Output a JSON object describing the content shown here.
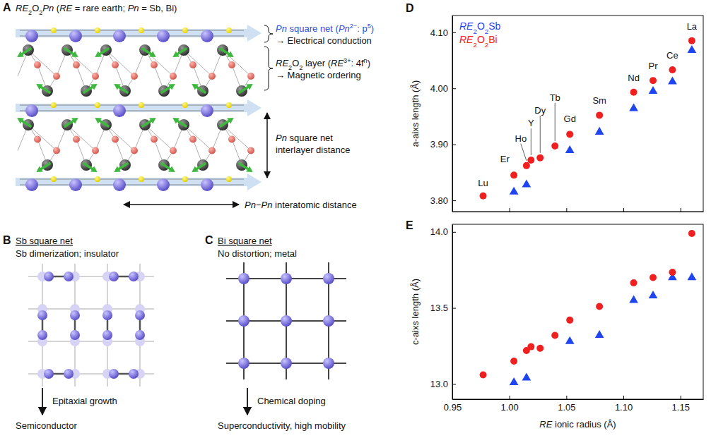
{
  "diagram": {
    "panel_letters": [
      "A",
      "B",
      "C",
      "D",
      "E"
    ],
    "A": {
      "title": "RE2O2Pn (RE = rare earth; Pn = Sb, Bi)",
      "net_label": "Pn square net (Pn2−: p5)",
      "net_role": "→ Electrical conduction",
      "layer_label": "RE2O2 layer (RE3+: 4fn)",
      "layer_role": "→ Magnetic ordering",
      "interlayer_label": [
        "Pn square net",
        "interlayer distance"
      ],
      "interatomic_label": "Pn−Pn interatomic distance"
    },
    "B": {
      "title": "Sb square net",
      "subtitle": "Sb dimerization; insulator",
      "arrow_label": "Epitaxial growth",
      "result": "Semiconductor"
    },
    "C": {
      "title": "Bi square net",
      "subtitle": "No distortion; metal",
      "arrow_label": "Chemical doping",
      "result": "Superconductivity, high mobility"
    }
  },
  "chart_data": [
    {
      "type": "scatter",
      "ylabel": "a-aixs length (Å)",
      "xlim": [
        0.95,
        1.17
      ],
      "ylim": [
        3.78,
        4.13
      ],
      "xticks": [
        0.95,
        1.0,
        1.05,
        1.1,
        1.15
      ],
      "yticks": [
        {
          "value": 3.8,
          "label": "3.80"
        },
        {
          "value": 3.9,
          "label": "3.90"
        },
        {
          "value": 4.0,
          "label": "4.00"
        },
        {
          "value": 4.1,
          "label": "4.10"
        }
      ],
      "tick_labels": "y",
      "legend": "upper left",
      "series": [
        {
          "name": "RE2O2Sb",
          "color": "#1f45f0",
          "marker": "triangle",
          "x": [
            1.004,
            1.015,
            1.053,
            1.079,
            1.109,
            1.126,
            1.143,
            1.16
          ],
          "values": [
            3.815,
            3.828,
            3.889,
            3.922,
            3.964,
            3.995,
            4.012,
            4.068
          ]
        },
        {
          "name": "RE2O2Bi",
          "color": "#f02020",
          "marker": "circle",
          "x": [
            0.977,
            1.004,
            1.015,
            1.019,
            1.027,
            1.04,
            1.053,
            1.079,
            1.109,
            1.126,
            1.143,
            1.16
          ],
          "values": [
            3.808,
            3.845,
            3.862,
            3.872,
            3.876,
            3.897,
            3.918,
            3.952,
            3.993,
            4.014,
            4.033,
            4.085
          ]
        }
      ],
      "annotations": [
        {
          "text": "Lu",
          "x": 0.977,
          "y": 3.825
        },
        {
          "text": "Er",
          "x": 0.996,
          "y": 3.868
        },
        {
          "text": "Ho",
          "x": 1.01,
          "y": 3.905
        },
        {
          "text": "Y",
          "x": 1.019,
          "y": 3.932
        },
        {
          "text": "Dy",
          "x": 1.027,
          "y": 3.955
        },
        {
          "text": "Tb",
          "x": 1.04,
          "y": 3.978
        },
        {
          "text": "Gd",
          "x": 1.053,
          "y": 3.94
        },
        {
          "text": "Sm",
          "x": 1.079,
          "y": 3.972
        },
        {
          "text": "Nd",
          "x": 1.109,
          "y": 4.013
        },
        {
          "text": "Pr",
          "x": 1.126,
          "y": 4.034
        },
        {
          "text": "Ce",
          "x": 1.143,
          "y": 4.053
        },
        {
          "text": "La",
          "x": 1.16,
          "y": 4.105
        }
      ]
    },
    {
      "type": "scatter",
      "xlabel": "RE ionic radius (Å)",
      "ylabel": "c-aixs length (Å)",
      "xlim": [
        0.95,
        1.17
      ],
      "ylim": [
        12.9,
        14.05
      ],
      "xticks": [
        0.95,
        {
          "value": 1.0,
          "label": "1.00"
        },
        1.05,
        {
          "value": 1.1,
          "label": "1.10"
        },
        1.15
      ],
      "yticks": [
        {
          "value": 13.0,
          "label": "13.0"
        },
        13.5,
        {
          "value": 14.0,
          "label": "14.0"
        }
      ],
      "series": [
        {
          "name": "RE2O2Sb",
          "color": "#1f45f0",
          "marker": "triangle",
          "x": [
            1.004,
            1.015,
            1.053,
            1.079,
            1.109,
            1.126,
            1.143,
            1.16
          ],
          "values": [
            13.01,
            13.04,
            13.28,
            13.32,
            13.55,
            13.58,
            13.7,
            13.7
          ]
        },
        {
          "name": "RE2O2Bi",
          "color": "#f02020",
          "marker": "circle",
          "x": [
            0.977,
            1.004,
            1.015,
            1.019,
            1.027,
            1.04,
            1.053,
            1.079,
            1.109,
            1.126,
            1.143,
            1.16
          ],
          "values": [
            13.06,
            13.15,
            13.22,
            13.245,
            13.235,
            13.32,
            13.42,
            13.51,
            13.665,
            13.7,
            13.735,
            13.99
          ]
        }
      ]
    }
  ]
}
